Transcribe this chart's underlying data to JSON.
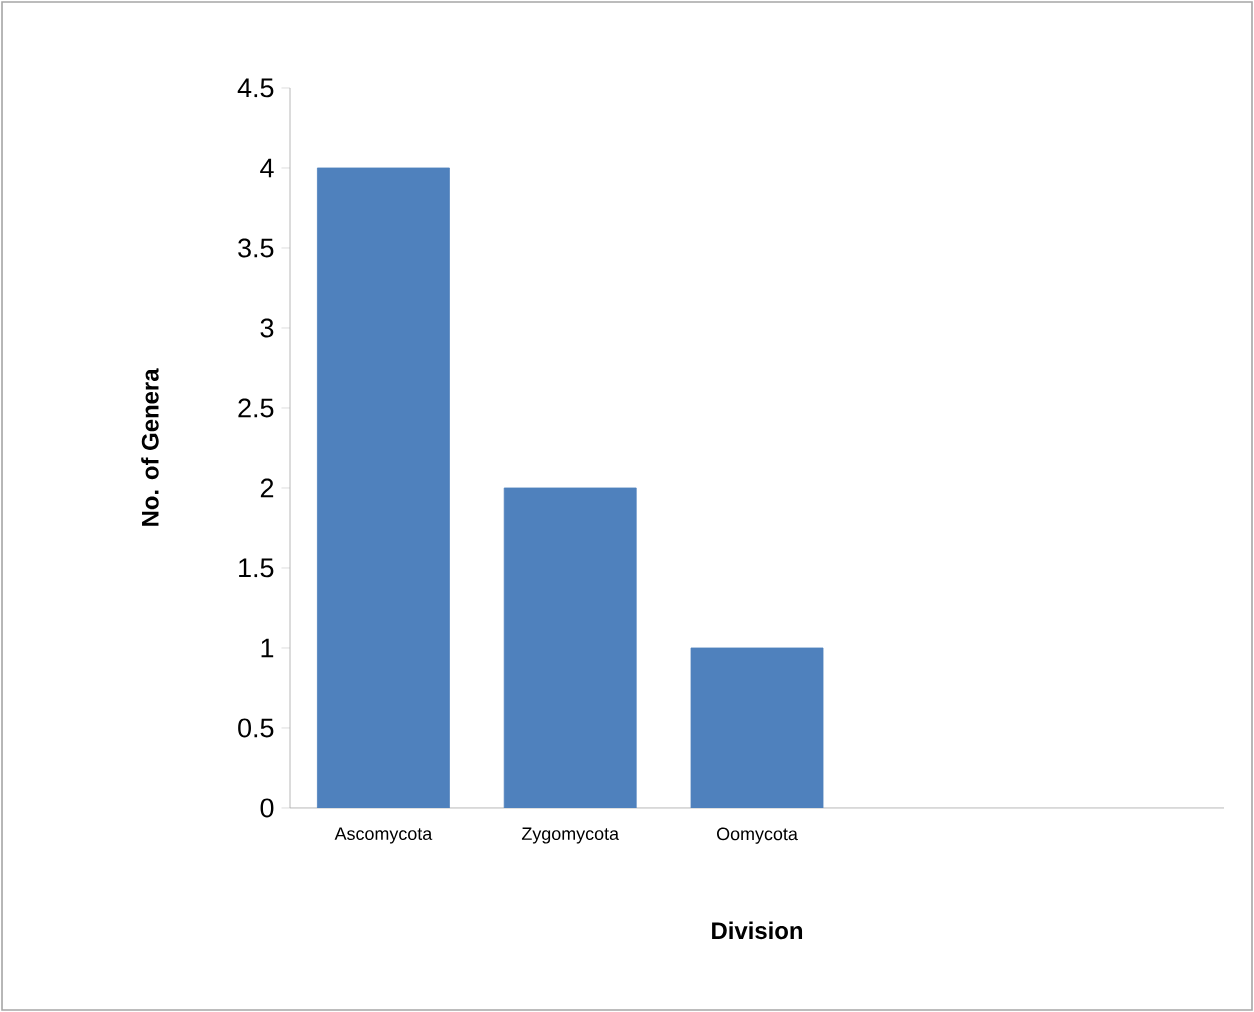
{
  "chart_data": {
    "type": "bar",
    "xlabel": "Division",
    "ylabel": "No. of Genera",
    "categories": [
      "Ascomycota",
      "Zygomycota",
      "Oomycota",
      null,
      null
    ],
    "values": [
      4,
      2,
      1,
      null,
      null
    ],
    "color": "#4f81bd",
    "ylim": [
      0,
      4.5
    ],
    "yticks": [
      0,
      0.5,
      1,
      1.5,
      2,
      2.5,
      3,
      3.5,
      4,
      4.5
    ],
    "grid": false
  }
}
